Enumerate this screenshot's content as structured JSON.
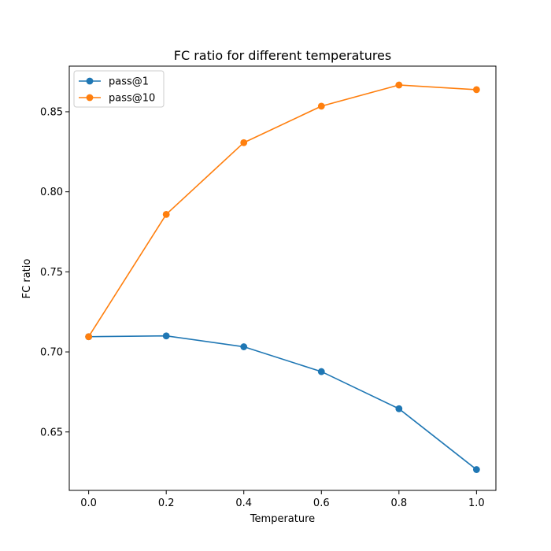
{
  "chart_data": {
    "type": "line",
    "title": "FC ratio for different temperatures",
    "xlabel": "Temperature",
    "ylabel": "FC ratio",
    "xlim": [
      -0.05,
      1.05
    ],
    "ylim": [
      0.6135,
      0.8785
    ],
    "xticks": [
      0.0,
      0.2,
      0.4,
      0.6,
      0.8,
      1.0
    ],
    "xtick_labels": [
      "0.0",
      "0.2",
      "0.4",
      "0.6",
      "0.8",
      "1.0"
    ],
    "yticks": [
      0.65,
      0.7,
      0.75,
      0.8,
      0.85
    ],
    "ytick_labels": [
      "0.65",
      "0.70",
      "0.75",
      "0.80",
      "0.85"
    ],
    "grid": false,
    "legend_position": "upper left",
    "x": [
      0.0,
      0.2,
      0.4,
      0.6,
      0.8,
      1.0
    ],
    "series": [
      {
        "name": "pass@1",
        "color": "#1f77b4",
        "marker": "circle",
        "values": [
          0.7095,
          0.71,
          0.7032,
          0.6877,
          0.6645,
          0.6265
        ]
      },
      {
        "name": "pass@10",
        "color": "#ff7f0e",
        "marker": "circle",
        "values": [
          0.7095,
          0.7859,
          0.8307,
          0.8535,
          0.8667,
          0.8638
        ]
      }
    ]
  }
}
